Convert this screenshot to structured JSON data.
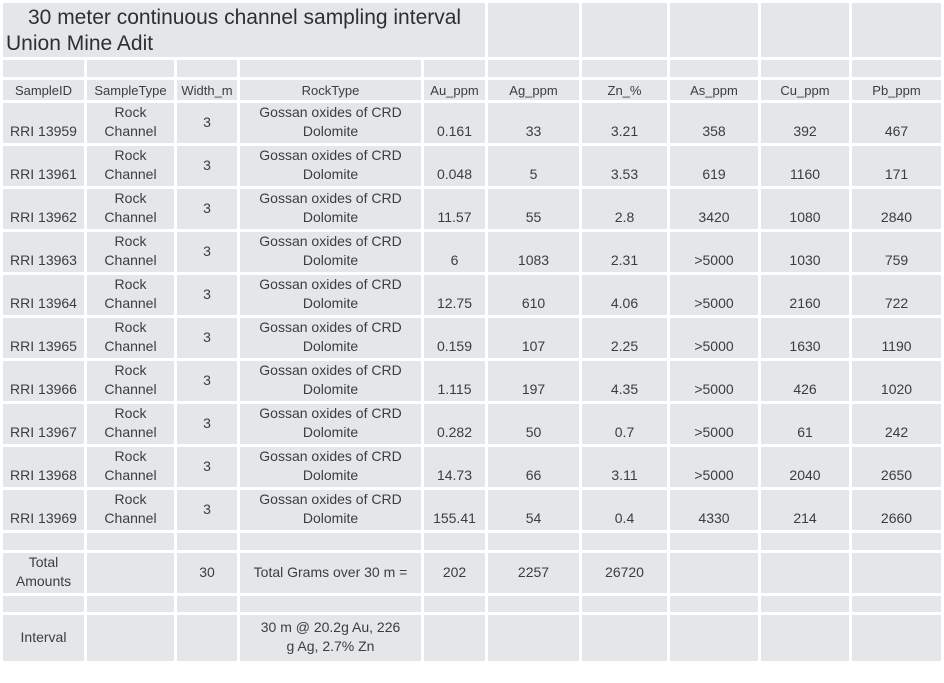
{
  "title": {
    "line1": "30 meter continuous channel sampling interval",
    "line2": "Union Mine Adit"
  },
  "table": {
    "headers": [
      "SampleID",
      "SampleType",
      "Width_m",
      "RockType",
      "Au_ppm",
      "Ag_ppm",
      "Zn_%",
      "As_ppm",
      "Cu_ppm",
      "Pb_ppm"
    ],
    "rows": [
      {
        "sample_id": "RRI 13959",
        "sample_type": "Rock Channel",
        "width_m": "3",
        "rock_type": "Gossan oxides of CRD Dolomite",
        "au_ppm": "0.161",
        "ag_ppm": "33",
        "zn_pct": "3.21",
        "as_ppm": "358",
        "cu_ppm": "392",
        "pb_ppm": "467"
      },
      {
        "sample_id": "RRI 13961",
        "sample_type": "Rock Channel",
        "width_m": "3",
        "rock_type": "Gossan oxides of CRD Dolomite",
        "au_ppm": "0.048",
        "ag_ppm": "5",
        "zn_pct": "3.53",
        "as_ppm": "619",
        "cu_ppm": "1160",
        "pb_ppm": "171"
      },
      {
        "sample_id": "RRI 13962",
        "sample_type": "Rock Channel",
        "width_m": "3",
        "rock_type": "Gossan oxides of CRD Dolomite",
        "au_ppm": "11.57",
        "ag_ppm": "55",
        "zn_pct": "2.8",
        "as_ppm": "3420",
        "cu_ppm": "1080",
        "pb_ppm": "2840"
      },
      {
        "sample_id": "RRI 13963",
        "sample_type": "Rock Channel",
        "width_m": "3",
        "rock_type": "Gossan oxides of CRD Dolomite",
        "au_ppm": "6",
        "ag_ppm": "1083",
        "zn_pct": "2.31",
        "as_ppm": ">5000",
        "cu_ppm": "1030",
        "pb_ppm": "759"
      },
      {
        "sample_id": "RRI 13964",
        "sample_type": "Rock Channel",
        "width_m": "3",
        "rock_type": "Gossan oxides of CRD Dolomite",
        "au_ppm": "12.75",
        "ag_ppm": "610",
        "zn_pct": "4.06",
        "as_ppm": ">5000",
        "cu_ppm": "2160",
        "pb_ppm": "722"
      },
      {
        "sample_id": "RRI 13965",
        "sample_type": "Rock Channel",
        "width_m": "3",
        "rock_type": "Gossan oxides of CRD Dolomite",
        "au_ppm": "0.159",
        "ag_ppm": "107",
        "zn_pct": "2.25",
        "as_ppm": ">5000",
        "cu_ppm": "1630",
        "pb_ppm": "1190"
      },
      {
        "sample_id": "RRI 13966",
        "sample_type": "Rock Channel",
        "width_m": "3",
        "rock_type": "Gossan oxides of CRD Dolomite",
        "au_ppm": "1.115",
        "ag_ppm": "197",
        "zn_pct": "4.35",
        "as_ppm": ">5000",
        "cu_ppm": "426",
        "pb_ppm": "1020"
      },
      {
        "sample_id": "RRI 13967",
        "sample_type": "Rock Channel",
        "width_m": "3",
        "rock_type": "Gossan oxides of CRD Dolomite",
        "au_ppm": "0.282",
        "ag_ppm": "50",
        "zn_pct": "0.7",
        "as_ppm": ">5000",
        "cu_ppm": "61",
        "pb_ppm": "242"
      },
      {
        "sample_id": "RRI 13968",
        "sample_type": "Rock Channel",
        "width_m": "3",
        "rock_type": "Gossan oxides of CRD Dolomite",
        "au_ppm": "14.73",
        "ag_ppm": "66",
        "zn_pct": "3.11",
        "as_ppm": ">5000",
        "cu_ppm": "2040",
        "pb_ppm": "2650"
      },
      {
        "sample_id": "RRI 13969",
        "sample_type": "Rock Channel",
        "width_m": "3",
        "rock_type": "Gossan oxides of CRD Dolomite",
        "au_ppm": "155.41",
        "ag_ppm": "54",
        "zn_pct": "0.4",
        "as_ppm": "4330",
        "cu_ppm": "214",
        "pb_ppm": "2660"
      }
    ],
    "totals_row": {
      "label": "Total Amounts",
      "width_m": "30",
      "formula_label": "Total Grams over 30 m =",
      "au_total": "202",
      "ag_total": "2257",
      "zn_total": "26720"
    },
    "interval_row": {
      "label": "Interval",
      "summary_line1": "30 m @ 20.2g Au, 226",
      "summary_line2": "g Ag, 2.7% Zn"
    }
  },
  "colors": {
    "cell_bg": "#e4e7e9",
    "gridline": "#ffffff",
    "text": "#3a3d41",
    "title_text": "#2d3033"
  }
}
